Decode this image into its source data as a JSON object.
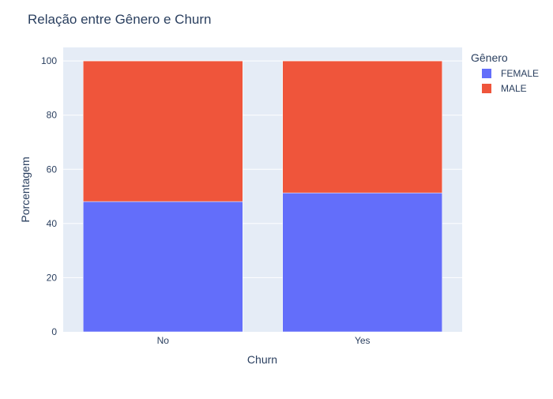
{
  "chart_data": {
    "type": "bar",
    "barmode": "stack",
    "title": "Relação entre Gênero e Churn",
    "xlabel": "Churn",
    "ylabel": "Porcentagem",
    "categories": [
      "No",
      "Yes"
    ],
    "series": [
      {
        "name": "FEMALE",
        "color": "#636efa",
        "values": [
          48.1,
          51.3
        ]
      },
      {
        "name": "MALE",
        "color": "#ef553b",
        "values": [
          51.9,
          48.7
        ]
      }
    ],
    "ylim": [
      0,
      105
    ],
    "yticks": [
      "0",
      "20",
      "40",
      "60",
      "80",
      "100"
    ],
    "grid": true,
    "legend": {
      "title": "Gênero",
      "placement": "top-right"
    },
    "colors": {
      "plot_background": "#e5ecf6",
      "grid": "#ffffff",
      "text": "#2a3f5f"
    }
  }
}
